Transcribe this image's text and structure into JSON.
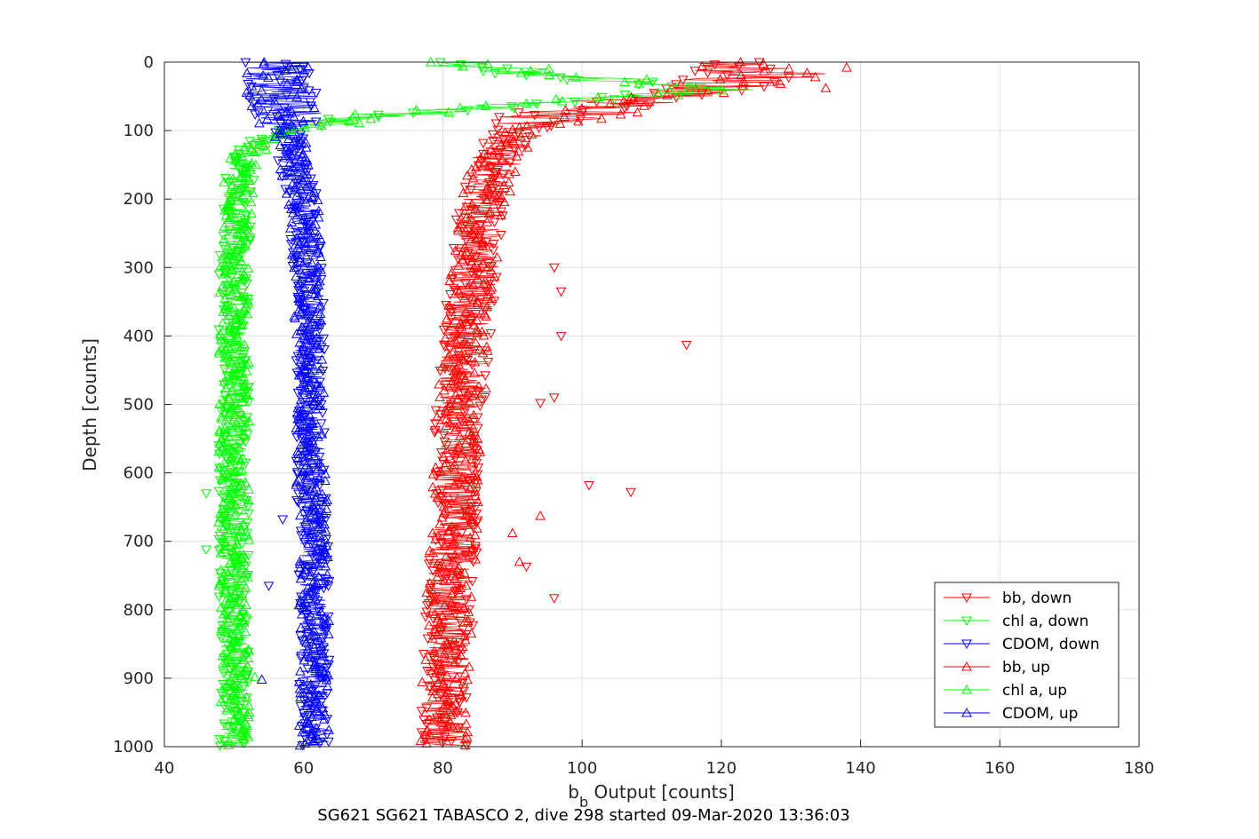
{
  "chart_data": {
    "type": "scatter",
    "xlabel": {
      "base": "b",
      "subscript": "b",
      "rest": " Output [counts]"
    },
    "ylabel": "Depth [counts]",
    "caption": "SG621 SG621 TABASCO 2, dive 298 started 09-Mar-2020 13:36:03",
    "xlim": [
      40,
      180
    ],
    "ylim": [
      0,
      1000
    ],
    "y_reversed": true,
    "grid": true,
    "legend_position": "bottom-right",
    "xticks": [
      "40",
      "60",
      "80",
      "100",
      "120",
      "140",
      "160",
      "180"
    ],
    "yticks": [
      "0",
      "100",
      "200",
      "300",
      "400",
      "500",
      "600",
      "700",
      "800",
      "900",
      "1000"
    ],
    "series": [
      {
        "name": "bb, down",
        "color": "#ff0000",
        "marker": "triangle-down",
        "profile": [
          [
            0,
            118
          ],
          [
            20,
            124
          ],
          [
            40,
            118
          ],
          [
            60,
            104
          ],
          [
            80,
            96
          ],
          [
            100,
            91
          ],
          [
            130,
            88
          ],
          [
            160,
            87
          ],
          [
            200,
            86
          ],
          [
            250,
            85
          ],
          [
            300,
            84.5
          ],
          [
            350,
            84
          ],
          [
            400,
            83.5
          ],
          [
            450,
            83
          ],
          [
            500,
            82.5
          ],
          [
            600,
            82
          ],
          [
            700,
            81.5
          ],
          [
            800,
            81
          ],
          [
            900,
            80.5
          ],
          [
            1000,
            80
          ]
        ],
        "spread": 3.5
      },
      {
        "name": "chl a, down",
        "color": "#00ff00",
        "marker": "triangle-down",
        "profile": [
          [
            0,
            78
          ],
          [
            20,
            95
          ],
          [
            40,
            118
          ],
          [
            60,
            95
          ],
          [
            80,
            70
          ],
          [
            100,
            57
          ],
          [
            120,
            53
          ],
          [
            150,
            51
          ],
          [
            200,
            50.5
          ],
          [
            300,
            50
          ],
          [
            400,
            50
          ],
          [
            500,
            50
          ],
          [
            600,
            50
          ],
          [
            700,
            50
          ],
          [
            800,
            50
          ],
          [
            900,
            50
          ],
          [
            1000,
            50
          ]
        ],
        "spread": 2.2
      },
      {
        "name": "CDOM, down",
        "color": "#0000ff",
        "marker": "triangle-down",
        "profile": [
          [
            0,
            56
          ],
          [
            50,
            57
          ],
          [
            100,
            58
          ],
          [
            150,
            58.5
          ],
          [
            200,
            60
          ],
          [
            300,
            60.5
          ],
          [
            400,
            61
          ],
          [
            500,
            61
          ],
          [
            600,
            61
          ],
          [
            700,
            61.5
          ],
          [
            800,
            61.5
          ],
          [
            900,
            61.5
          ],
          [
            1000,
            61.5
          ]
        ],
        "spread": 2.2
      },
      {
        "name": "bb, up",
        "color": "#ff0000",
        "marker": "triangle-up",
        "profile": [
          [
            0,
            122
          ],
          [
            20,
            128
          ],
          [
            40,
            120
          ],
          [
            60,
            106
          ],
          [
            80,
            97
          ],
          [
            100,
            92
          ],
          [
            130,
            89
          ],
          [
            160,
            87
          ],
          [
            200,
            86
          ],
          [
            250,
            85
          ],
          [
            300,
            84.5
          ],
          [
            350,
            84
          ],
          [
            400,
            83.5
          ],
          [
            450,
            83
          ],
          [
            500,
            82.5
          ],
          [
            600,
            82
          ],
          [
            700,
            81.5
          ],
          [
            800,
            81
          ],
          [
            900,
            80.5
          ],
          [
            1000,
            80
          ]
        ],
        "spread": 3.5
      },
      {
        "name": "chl a, up",
        "color": "#00ff00",
        "marker": "triangle-up",
        "profile": [
          [
            0,
            82
          ],
          [
            20,
            100
          ],
          [
            40,
            120
          ],
          [
            60,
            92
          ],
          [
            80,
            68
          ],
          [
            100,
            57
          ],
          [
            120,
            53
          ],
          [
            150,
            51
          ],
          [
            200,
            50.5
          ],
          [
            300,
            50
          ],
          [
            400,
            50
          ],
          [
            500,
            50
          ],
          [
            600,
            50
          ],
          [
            700,
            50
          ],
          [
            800,
            50
          ],
          [
            900,
            50
          ],
          [
            1000,
            50
          ]
        ],
        "spread": 2.2
      },
      {
        "name": "CDOM, up",
        "color": "#0000ff",
        "marker": "triangle-up",
        "profile": [
          [
            0,
            56
          ],
          [
            50,
            57
          ],
          [
            100,
            58
          ],
          [
            150,
            58.5
          ],
          [
            200,
            60
          ],
          [
            300,
            60.5
          ],
          [
            400,
            61
          ],
          [
            500,
            61
          ],
          [
            600,
            61
          ],
          [
            700,
            61.5
          ],
          [
            800,
            61.5
          ],
          [
            900,
            61.5
          ],
          [
            1000,
            61.5
          ]
        ],
        "spread": 2.2
      }
    ],
    "outliers": [
      {
        "series": 0,
        "x": 115,
        "y": 413
      },
      {
        "series": 0,
        "x": 96,
        "y": 300
      },
      {
        "series": 0,
        "x": 97,
        "y": 335
      },
      {
        "series": 0,
        "x": 97,
        "y": 400
      },
      {
        "series": 0,
        "x": 96,
        "y": 490
      },
      {
        "series": 0,
        "x": 94,
        "y": 498
      },
      {
        "series": 0,
        "x": 101,
        "y": 618
      },
      {
        "series": 0,
        "x": 107,
        "y": 628
      },
      {
        "series": 0,
        "x": 96,
        "y": 783
      },
      {
        "series": 0,
        "x": 92,
        "y": 737
      },
      {
        "series": 0,
        "x": 95,
        "y": 95
      },
      {
        "series": 3,
        "x": 94,
        "y": 663
      },
      {
        "series": 3,
        "x": 90,
        "y": 688
      },
      {
        "series": 3,
        "x": 91,
        "y": 730
      },
      {
        "series": 3,
        "x": 138,
        "y": 8
      },
      {
        "series": 3,
        "x": 135,
        "y": 38
      },
      {
        "series": 1,
        "x": 46,
        "y": 712
      },
      {
        "series": 1,
        "x": 46,
        "y": 630
      },
      {
        "series": 2,
        "x": 55,
        "y": 765
      },
      {
        "series": 2,
        "x": 57,
        "y": 668
      },
      {
        "series": 4,
        "x": 53,
        "y": 898
      },
      {
        "series": 5,
        "x": 54,
        "y": 902
      }
    ]
  }
}
